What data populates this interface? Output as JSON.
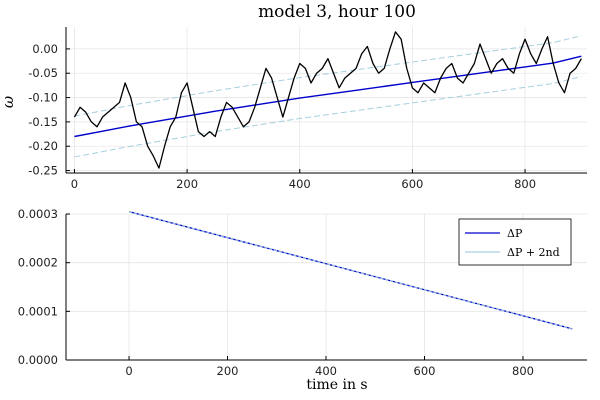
{
  "chart_data": [
    {
      "type": "line",
      "title": "model 3,  hour 100",
      "xlabel": "",
      "ylabel": "ω",
      "xlim": [
        -15,
        910
      ],
      "ylim": [
        -0.255,
        0.045
      ],
      "xticks": [
        0,
        200,
        400,
        600,
        800
      ],
      "yticks": [
        -0.25,
        -0.2,
        -0.15,
        -0.1,
        -0.05,
        0.0
      ],
      "xtick_labels": [
        "0",
        "200",
        "400",
        "600",
        "800"
      ],
      "ytick_labels": [
        "-0.25",
        "-0.20",
        "-0.15",
        "-0.10",
        "-0.05",
        "0.00"
      ],
      "grid": true,
      "legend": "none",
      "colors": {
        "observed": "#000000",
        "fit": "#0000cc",
        "band": "#a6cfe0"
      },
      "series": [
        {
          "role": "observed",
          "x": [
            0,
            10,
            20,
            30,
            40,
            50,
            60,
            70,
            80,
            90,
            100,
            110,
            120,
            130,
            140,
            150,
            160,
            170,
            180,
            190,
            200,
            210,
            220,
            230,
            240,
            250,
            260,
            270,
            280,
            290,
            300,
            310,
            320,
            330,
            340,
            350,
            360,
            370,
            380,
            390,
            400,
            410,
            420,
            430,
            440,
            450,
            460,
            470,
            480,
            490,
            500,
            510,
            520,
            530,
            540,
            550,
            560,
            570,
            580,
            590,
            600,
            610,
            620,
            630,
            640,
            650,
            660,
            670,
            680,
            690,
            700,
            710,
            720,
            730,
            740,
            750,
            760,
            770,
            780,
            790,
            800,
            810,
            820,
            830,
            840,
            850,
            860,
            870,
            880,
            890,
            900
          ],
          "y": [
            -0.14,
            -0.12,
            -0.13,
            -0.15,
            -0.16,
            -0.14,
            -0.13,
            -0.12,
            -0.11,
            -0.07,
            -0.1,
            -0.15,
            -0.16,
            -0.2,
            -0.22,
            -0.245,
            -0.2,
            -0.16,
            -0.14,
            -0.09,
            -0.07,
            -0.12,
            -0.17,
            -0.18,
            -0.17,
            -0.18,
            -0.14,
            -0.11,
            -0.12,
            -0.14,
            -0.16,
            -0.15,
            -0.12,
            -0.08,
            -0.04,
            -0.06,
            -0.1,
            -0.14,
            -0.1,
            -0.06,
            -0.03,
            -0.04,
            -0.07,
            -0.05,
            -0.04,
            -0.02,
            -0.05,
            -0.08,
            -0.06,
            -0.05,
            -0.04,
            -0.01,
            0.005,
            -0.03,
            -0.05,
            -0.04,
            0.0,
            0.035,
            0.02,
            -0.04,
            -0.08,
            -0.09,
            -0.07,
            -0.08,
            -0.09,
            -0.06,
            -0.04,
            -0.03,
            -0.06,
            -0.07,
            -0.05,
            -0.03,
            0.01,
            -0.02,
            -0.05,
            -0.03,
            -0.02,
            -0.04,
            -0.05,
            -0.01,
            0.02,
            -0.01,
            -0.03,
            0.0,
            0.025,
            -0.03,
            -0.07,
            -0.09,
            -0.05,
            -0.04,
            -0.02
          ]
        },
        {
          "role": "fit",
          "x": [
            0,
            50,
            100,
            150,
            200,
            250,
            300,
            350,
            400,
            450,
            500,
            550,
            600,
            650,
            700,
            750,
            800,
            850,
            900
          ],
          "y": [
            -0.18,
            -0.169,
            -0.158,
            -0.148,
            -0.138,
            -0.128,
            -0.119,
            -0.11,
            -0.101,
            -0.093,
            -0.085,
            -0.077,
            -0.069,
            -0.061,
            -0.053,
            -0.045,
            -0.037,
            -0.029,
            -0.015
          ]
        },
        {
          "role": "upper band",
          "x": [
            0,
            50,
            100,
            150,
            200,
            250,
            300,
            350,
            400,
            450,
            500,
            550,
            600,
            650,
            700,
            750,
            800,
            850,
            900
          ],
          "y": [
            -0.138,
            -0.127,
            -0.116,
            -0.106,
            -0.096,
            -0.086,
            -0.077,
            -0.068,
            -0.059,
            -0.051,
            -0.043,
            -0.035,
            -0.027,
            -0.019,
            -0.011,
            -0.003,
            0.005,
            0.013,
            0.027
          ]
        },
        {
          "role": "lower band",
          "x": [
            0,
            50,
            100,
            150,
            200,
            250,
            300,
            350,
            400,
            450,
            500,
            550,
            600,
            650,
            700,
            750,
            800,
            850,
            900
          ],
          "y": [
            -0.222,
            -0.211,
            -0.2,
            -0.19,
            -0.18,
            -0.17,
            -0.161,
            -0.152,
            -0.143,
            -0.135,
            -0.127,
            -0.119,
            -0.111,
            -0.103,
            -0.095,
            -0.087,
            -0.079,
            -0.071,
            -0.057
          ]
        }
      ]
    },
    {
      "type": "line",
      "title": "",
      "xlabel": "time in s",
      "ylabel": "",
      "xlim": [
        -128,
        930
      ],
      "ylim": [
        0.0,
        0.0003
      ],
      "xticks": [
        0,
        200,
        400,
        600,
        800
      ],
      "yticks": [
        0.0,
        0.0001,
        0.0002,
        0.0003
      ],
      "xtick_labels": [
        "0",
        "200",
        "400",
        "600",
        "800"
      ],
      "ytick_labels": [
        "0.0000",
        "0.0001",
        "0.0002",
        "0.0003"
      ],
      "grid": true,
      "legend": "top-right",
      "series": [
        {
          "name": "ΔP",
          "color": "#0000cc",
          "dash": "solid",
          "x": [
            0,
            900
          ],
          "y": [
            0.000305,
            6.4e-05
          ]
        },
        {
          "name": "ΔP + 2nd",
          "color": "#a6cfe0",
          "dash": "solid",
          "x": [
            0,
            900
          ],
          "y": [
            0.000305,
            6.4e-05
          ]
        }
      ]
    }
  ]
}
